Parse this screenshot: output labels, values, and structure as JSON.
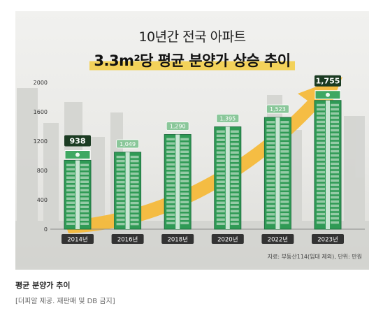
{
  "header": {
    "title_line1": "10년간 전국 아파트",
    "title_line2": "3.3m²당 평균 분양가 상승 추이"
  },
  "source_note": "자료: 부동산114(임대 제외), 단위: 만원",
  "caption": {
    "title": "평균 분양가 추이",
    "credit": "[더피알 제공. 재판매 및 DB 금지]"
  },
  "colors": {
    "bar_green": "#2f9a55",
    "bar_green_dark": "#1f7040",
    "bar_window_light": "#e9f4ea",
    "arrow": "#f5b935",
    "label_dark": "#1b3b22",
    "label_light": "#8ac79a",
    "label_text_light": "#ffffff",
    "tick_pill": "#333333"
  },
  "chart_data": {
    "type": "bar",
    "categories": [
      "2014년",
      "2016년",
      "2018년",
      "2020년",
      "2022년",
      "2023년"
    ],
    "values": [
      938,
      1049,
      1290,
      1395,
      1523,
      1755
    ],
    "value_labels": [
      "938",
      "1,049",
      "1,290",
      "1,395",
      "1,523",
      "1,755"
    ],
    "highlighted": [
      "2014년",
      "2023년"
    ],
    "y_ticks": [
      0,
      400,
      800,
      1200,
      1600,
      2000
    ],
    "ylim": [
      0,
      2000
    ],
    "grid": false,
    "legend": "none",
    "annotation": "rising arrow"
  }
}
